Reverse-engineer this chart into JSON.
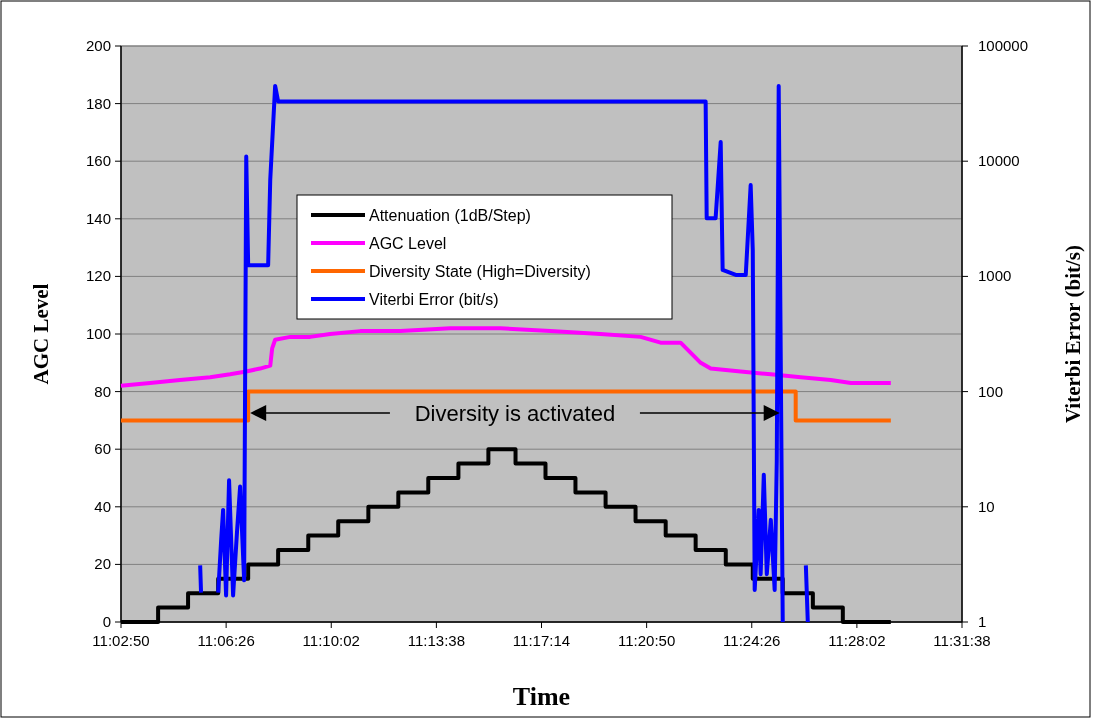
{
  "chart_data": {
    "type": "line",
    "xlabel": "Time",
    "ylabel": "AGC Level",
    "y2label": "Viterbi Error (bit/s)",
    "xlim": [
      11.04722,
      11.52722
    ],
    "xticks": [
      {
        "value": 11.04722,
        "label": "11:02:50"
      },
      {
        "value": 11.10722,
        "label": "11:06:26"
      },
      {
        "value": 11.16722,
        "label": "11:10:02"
      },
      {
        "value": 11.22722,
        "label": "11:13:38"
      },
      {
        "value": 11.28722,
        "label": "11:17:14"
      },
      {
        "value": 11.34722,
        "label": "11:20:50"
      },
      {
        "value": 11.40722,
        "label": "11:24:26"
      },
      {
        "value": 11.46722,
        "label": "11:28:02"
      },
      {
        "value": 11.52722,
        "label": "11:31:38"
      }
    ],
    "ylim": [
      0,
      200
    ],
    "yticks": [
      0,
      20,
      40,
      60,
      80,
      100,
      120,
      140,
      160,
      180,
      200
    ],
    "y2lim": [
      1,
      100000
    ],
    "y2ticks": [
      1,
      10,
      100,
      1000,
      10000,
      100000
    ],
    "log": "y2",
    "grid": "y",
    "legend": "top",
    "marker": "none",
    "line_style": "solid",
    "annotations": [
      "Diversity is activated"
    ],
    "series": [
      {
        "name": "Attenuation (1dB/Step)",
        "type": "step",
        "color": "#000000",
        "x": [
          11.04722,
          11.0684,
          11.0855,
          11.1027,
          11.1198,
          11.1369,
          11.1541,
          11.1712,
          11.1884,
          11.2055,
          11.2226,
          11.2398,
          11.2569,
          11.2724,
          11.2895,
          11.3066,
          11.3238,
          11.3409,
          11.3581,
          11.3752,
          11.3924,
          11.4078,
          11.4249,
          11.4421,
          11.4592,
          11.4866
        ],
        "values": [
          0,
          5,
          10,
          15,
          20,
          25,
          30,
          35,
          40,
          45,
          50,
          55,
          60,
          55,
          50,
          45,
          40,
          35,
          30,
          25,
          20,
          15,
          10,
          5,
          0,
          0
        ]
      },
      {
        "name": "AGC Level",
        "color": "#ff00ff",
        "x": [
          11.04722,
          11.0638,
          11.0809,
          11.0981,
          11.1095,
          11.1187,
          11.1266,
          11.1324,
          11.1335,
          11.1352,
          11.1438,
          11.1552,
          11.1666,
          11.1838,
          11.2066,
          11.2352,
          11.2638,
          11.2923,
          11.3209,
          11.3438,
          11.3552,
          11.3666,
          11.3781,
          11.3838,
          11.4009,
          11.4181,
          11.4352,
          11.4523,
          11.4638,
          11.4866
        ],
        "values": [
          82,
          83,
          84,
          85,
          86,
          87,
          88,
          89,
          95,
          98,
          99,
          99,
          100,
          101,
          101,
          102,
          102,
          101,
          100,
          99,
          97,
          97,
          90,
          88,
          87,
          86,
          85,
          84,
          83,
          83
        ]
      },
      {
        "name": "Diversity State (High=Diversity)",
        "type": "step",
        "color": "#ff6600",
        "x": [
          11.04722,
          11.1198,
          11.4323,
          11.4866
        ],
        "values": [
          70,
          80,
          70,
          70
        ]
      },
      {
        "name": "Viterbi Error (bit/s)",
        "axis": "y2",
        "color": "#0000ff",
        "x": [
          11.0924,
          11.0929,
          11.1,
          11.1027,
          11.1044,
          11.1055,
          11.1072,
          11.1089,
          11.1112,
          11.1135,
          11.1152,
          11.1175,
          11.1187,
          11.1198,
          11.1209,
          11.1312,
          11.1324,
          11.1352,
          11.1369,
          11.3809,
          11.3815,
          11.3866,
          11.3895,
          11.3906,
          11.3981,
          11.4038,
          11.4066,
          11.4078,
          11.4089,
          11.4112,
          11.4123,
          11.4141,
          11.4158,
          11.4181,
          11.4203,
          11.4215,
          11.4226,
          11.4249,
          11.43,
          11.4381,
          11.4392
        ],
        "values": [
          3.1,
          1.8,
          null,
          1.8,
          5.2,
          9.4,
          1.7,
          17,
          1.7,
          6.3,
          15,
          2.3,
          11000,
          1250,
          1250,
          1250,
          6900,
          45000,
          33000,
          33000,
          3200,
          3200,
          14700,
          1140,
          1030,
          1030,
          6200,
          1700,
          1.9,
          9.4,
          2.6,
          19,
          2.6,
          7.7,
          1.9,
          25,
          45000,
          1,
          null,
          3.1,
          1
        ]
      }
    ]
  }
}
